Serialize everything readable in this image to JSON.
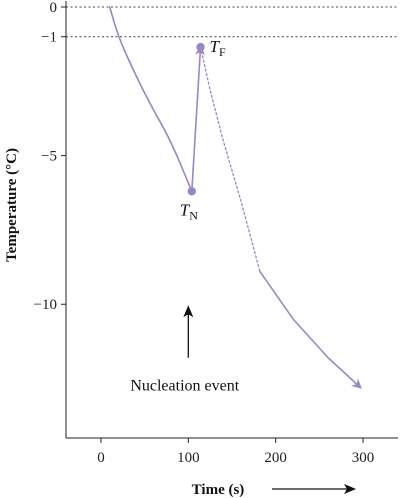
{
  "chart_data": {
    "type": "line",
    "title": "",
    "xlabel": "Time (s)",
    "ylabel": "Temperature (°C)",
    "xlim": [
      -40,
      340
    ],
    "ylim": [
      -14.5,
      0
    ],
    "x_ticks": [
      0,
      100,
      200,
      300
    ],
    "x_tick_labels": [
      "0",
      "100",
      "200",
      "300"
    ],
    "y_ticks": [
      0,
      -1,
      -5,
      -10
    ],
    "y_tick_labels": [
      "0",
      "−1",
      "−5",
      "−10"
    ],
    "reference_lines": [
      {
        "y": 0,
        "style": "dotted"
      },
      {
        "y": -1,
        "style": "dotted"
      }
    ],
    "series": [
      {
        "style": "solid",
        "points": [
          [
            10,
            0
          ],
          [
            20,
            -1
          ],
          [
            35,
            -2
          ],
          [
            55,
            -3.2
          ],
          [
            80,
            -4.5
          ],
          [
            104,
            -6.2
          ]
        ]
      },
      {
        "style": "solid-arrow",
        "points": [
          [
            104,
            -6.2
          ],
          [
            114,
            -1.35
          ]
        ]
      },
      {
        "style": "dotted",
        "points": [
          [
            114,
            -1.35
          ],
          [
            125,
            -2.8
          ],
          [
            140,
            -4.5
          ],
          [
            160,
            -6.5
          ],
          [
            182,
            -8.9
          ]
        ]
      },
      {
        "style": "solid-arrow",
        "points": [
          [
            182,
            -8.9
          ],
          [
            220,
            -10.5
          ],
          [
            260,
            -11.8
          ],
          [
            297,
            -12.8
          ]
        ]
      }
    ],
    "points": [
      {
        "label_main": "T",
        "label_sub": "N",
        "x": 104,
        "y": -6.2
      },
      {
        "label_main": "T",
        "label_sub": "F",
        "x": 114,
        "y": -1.35
      }
    ],
    "annotation": {
      "text": "Nucleation event",
      "x": 100,
      "arrow_from_y": -11.8,
      "arrow_to_y": -10.1,
      "text_y": -12.9
    },
    "time_arrow": true,
    "colors": {
      "curve": "#9b87c4",
      "axis": "#222222",
      "reference": "#444444",
      "text": "#111111"
    }
  }
}
